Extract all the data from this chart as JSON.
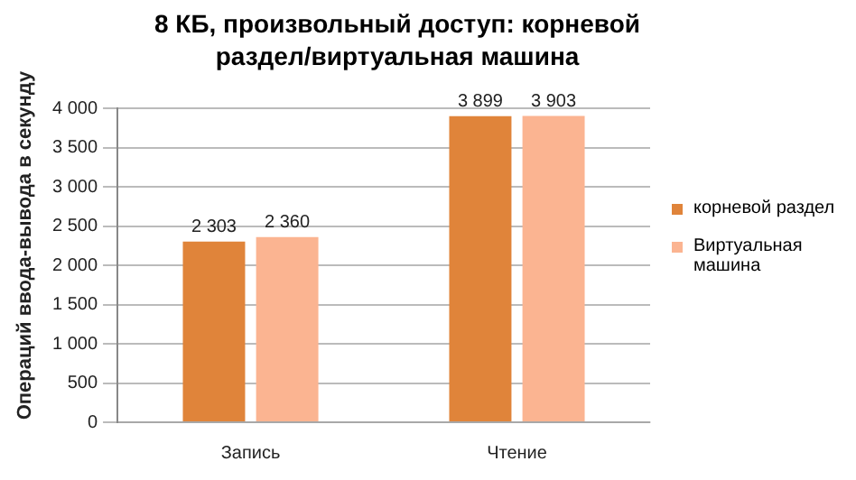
{
  "chart_data": {
    "type": "bar",
    "title": "8 КБ, произвольный доступ: корневой раздел/виртуальная машина",
    "ylabel": "Операций ввода-вывода в секунду",
    "categories": [
      "Запись",
      "Чтение"
    ],
    "series": [
      {
        "name": "корневой раздел",
        "color": "#e0843a",
        "values": [
          2303,
          3899
        ],
        "value_labels": [
          "2 303",
          "3 899"
        ]
      },
      {
        "name": "Виртуальная машина",
        "color": "#fbb491",
        "values": [
          2360,
          3903
        ],
        "value_labels": [
          "2 360",
          "3 903"
        ]
      }
    ],
    "ylim": [
      0,
      4000
    ],
    "yticks": [
      {
        "value": 0,
        "label": "0"
      },
      {
        "value": 500,
        "label": "500"
      },
      {
        "value": 1000,
        "label": "1 000"
      },
      {
        "value": 1500,
        "label": "1 500"
      },
      {
        "value": 2000,
        "label": "2 000"
      },
      {
        "value": 2500,
        "label": "2 500"
      },
      {
        "value": 3000,
        "label": "3 000"
      },
      {
        "value": 3500,
        "label": "3 500"
      },
      {
        "value": 4000,
        "label": "4 000"
      }
    ],
    "grid": "y",
    "legend": "right"
  }
}
